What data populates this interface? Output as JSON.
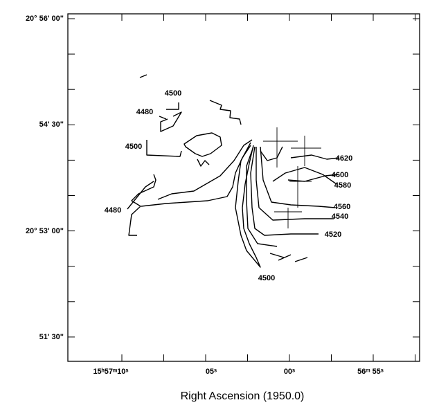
{
  "figure": {
    "y_axis": {
      "tick_labels": [
        "20° 56' 00\"",
        "54' 30\"",
        "20° 53' 00\"",
        "51' 30\""
      ]
    },
    "x_axis": {
      "title": "Right Ascension (1950.0)",
      "tick_labels": [
        "15ʰ57ᵐ10ˢ",
        "05ˢ",
        "00ˢ",
        "56ᵐ 55ˢ"
      ]
    },
    "contour_labels": [
      "4500",
      "4480",
      "4500",
      "4480",
      "4620",
      "4600",
      "4580",
      "4560",
      "4540",
      "4520",
      "4500"
    ]
  }
}
